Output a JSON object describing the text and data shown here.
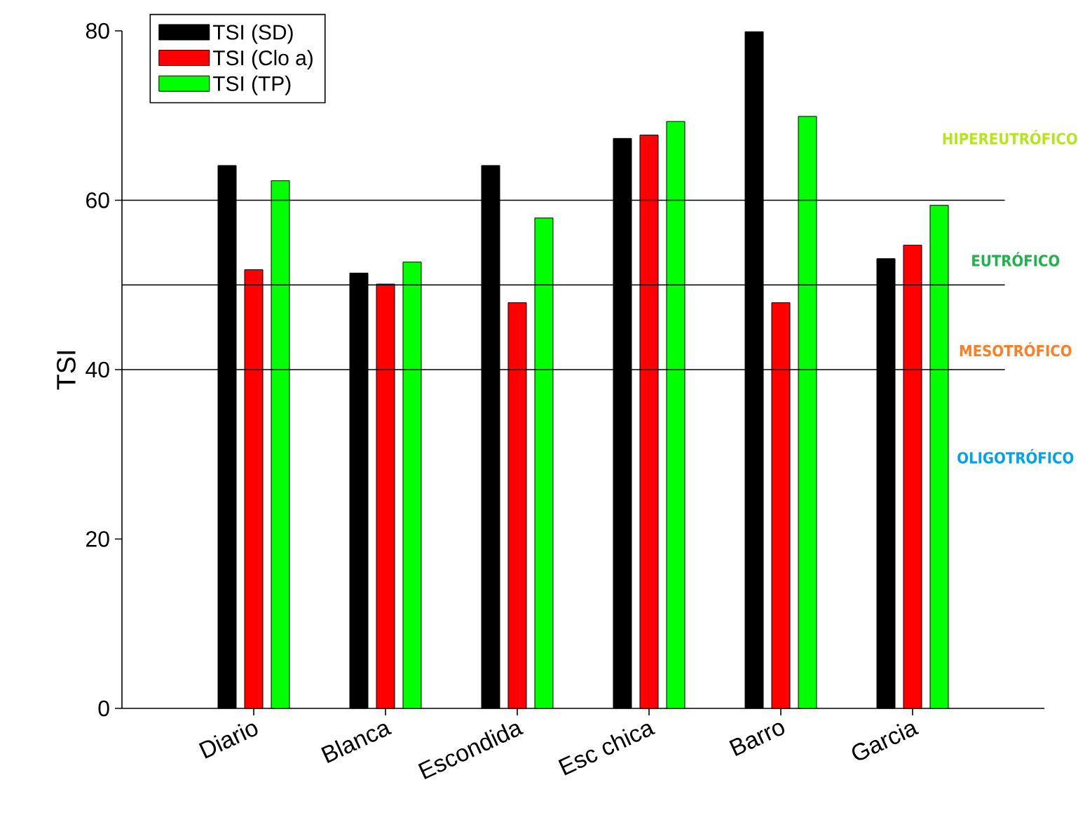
{
  "chart_data": {
    "type": "bar",
    "ylabel": "TSI",
    "categories": [
      "Diario",
      "Blanca",
      "Escondida",
      "Esc chica",
      "Barro",
      "Garcia"
    ],
    "series": [
      {
        "name": "TSI (SD)",
        "color": "#000000",
        "values": [
          64.1,
          51.4,
          64.1,
          67.3,
          79.9,
          53.1
        ]
      },
      {
        "name": "TSI (Clo a)",
        "color": "#ff0000",
        "values": [
          51.8,
          50.1,
          47.9,
          67.7,
          47.9,
          54.7
        ]
      },
      {
        "name": "TSI (TP)",
        "color": "#00ff00",
        "values": [
          62.3,
          52.7,
          57.9,
          69.3,
          69.9,
          59.4
        ]
      }
    ],
    "ylim": [
      0,
      80
    ],
    "yticks": [
      0,
      20,
      40,
      60,
      80
    ],
    "ref_lines": [
      {
        "axis": "y",
        "value": 60,
        "color": "#000000"
      },
      {
        "axis": "y",
        "value": 50,
        "color": "#000000"
      },
      {
        "axis": "y",
        "value": 40,
        "color": "#000000"
      }
    ],
    "annotations": [
      "HIPEREUTRÓFICO",
      "EUTRÓFICO",
      "MESOTRÓFICO",
      "OLIGOTRÓFICO"
    ],
    "legend": "top left",
    "grid": false
  }
}
